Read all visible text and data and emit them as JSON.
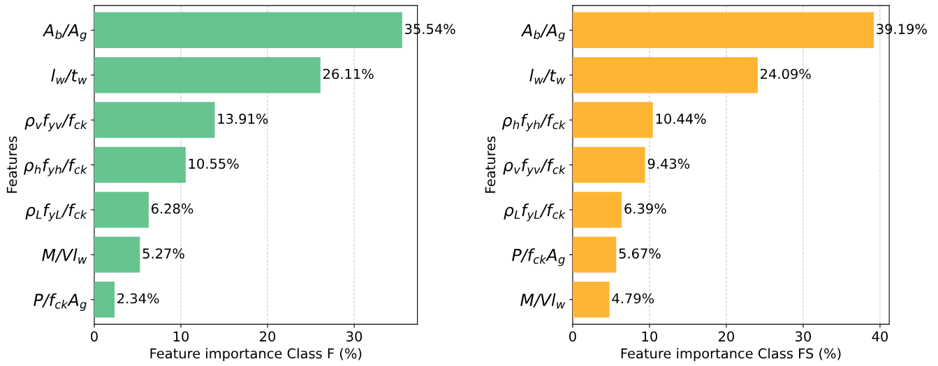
{
  "chart_data": [
    {
      "type": "bar",
      "orientation": "horizontal",
      "xlabel": "Feature importance Class F (%)",
      "ylabel": "Features",
      "categories": [
        "A$_{b}$/A$_{g}$",
        "l$_{w}$/t$_{w}$",
        "ρ$_{v}$f$_{yv}$/f$_{ck}$",
        "ρ$_{h}$f$_{yh}$/f$_{ck}$",
        "ρ$_{L}$f$_{yL}$/f$_{ck}$",
        "M/Vl$_{w}$",
        "P/f$_{ck}$A$_{g}$"
      ],
      "values": [
        35.54,
        26.11,
        13.91,
        10.55,
        6.28,
        5.27,
        2.34
      ],
      "value_labels": [
        "35.54%",
        "26.11%",
        "13.91%",
        "10.55%",
        "6.28%",
        "5.27%",
        "2.34%"
      ],
      "color": "#66c490",
      "xlim": [
        0,
        37.3
      ],
      "xticks": [
        0,
        10,
        20,
        30
      ],
      "grid": "x"
    },
    {
      "type": "bar",
      "orientation": "horizontal",
      "xlabel": "Feature importance Class FS (%)",
      "ylabel": "Features",
      "categories": [
        "A$_{b}$/A$_{g}$",
        "l$_{w}$/t$_{w}$",
        "ρ$_{h}$f$_{yh}$/f$_{ck}$",
        "ρ$_{v}$f$_{yv}$/f$_{ck}$",
        "ρ$_{L}$f$_{yL}$/f$_{ck}$",
        "P/f$_{ck}$A$_{g}$",
        "M/Vl$_{w}$"
      ],
      "values": [
        39.19,
        24.09,
        10.44,
        9.43,
        6.39,
        5.67,
        4.79
      ],
      "value_labels": [
        "39.19%",
        "24.09%",
        "10.44%",
        "9.43%",
        "6.39%",
        "5.67%",
        "4.79%"
      ],
      "color": "#ffb534",
      "xlim": [
        0,
        41.2
      ],
      "xticks": [
        0,
        10,
        20,
        30,
        40
      ],
      "grid": "x"
    }
  ]
}
